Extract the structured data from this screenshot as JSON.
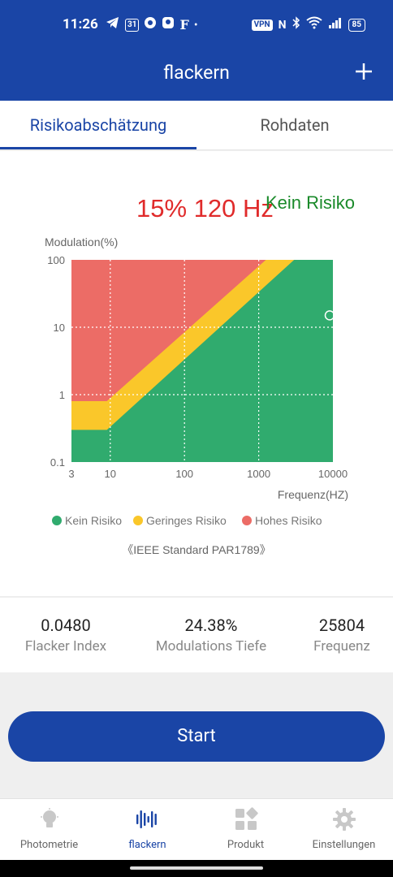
{
  "status_bar": {
    "time": "11:26",
    "calendar_day": "31",
    "f_icon": "F",
    "dot": "•",
    "vpn": "VPN",
    "nfc": "N",
    "battery": "85",
    "icons": [
      "telegram-icon",
      "calendar-icon",
      "chrome-icon",
      "app-icon",
      "bluetooth-icon",
      "wifi-icon",
      "signal-icon"
    ]
  },
  "app_bar": {
    "title": "flackern",
    "add_icon": "plus-icon"
  },
  "tabs": [
    {
      "label": "Risikoabschätzung",
      "active": true
    },
    {
      "label": "Rohdaten",
      "active": false
    }
  ],
  "chart_data": {
    "type": "area",
    "readout": {
      "percent_freq": "15% 120 Hz",
      "risk": "Kein Risiko"
    },
    "ylabel": "Modulation(%)",
    "xlabel": "Frequenz(HZ)",
    "x_scale": "log",
    "y_scale": "log",
    "x_ticks": [
      "3",
      "10",
      "100",
      "1000",
      "10000"
    ],
    "y_ticks": [
      "100",
      "10",
      "1",
      "0.1"
    ],
    "xlim": [
      3,
      10000
    ],
    "ylim": [
      0.1,
      100
    ],
    "grid": "dotted",
    "regions": [
      {
        "name": "Kein Risiko",
        "color": "#30ab6e",
        "boundary": [
          [
            3,
            0.3
          ],
          [
            9,
            0.3
          ],
          [
            3000,
            100
          ]
        ]
      },
      {
        "name": "Geringes Risiko",
        "color": "#fac72a",
        "boundary": [
          [
            3,
            0.8
          ],
          [
            9,
            0.8
          ],
          [
            1250,
            100
          ]
        ]
      },
      {
        "name": "Hohes Risiko",
        "color": "#ec6c66"
      }
    ],
    "marker": {
      "x_label": "above 10000",
      "y": 15,
      "color": "#ffffff"
    },
    "legend": [
      "Kein Risiko",
      "Geringes Risiko",
      "Hohes Risiko"
    ],
    "legend_colors": [
      "#30ab6e",
      "#fac72a",
      "#ec6c66"
    ],
    "legend_placement": "bottom",
    "source": "《IEEE Standard PAR1789》"
  },
  "stats": [
    {
      "value": "0.0480",
      "label": "Flacker Index"
    },
    {
      "value": "24.38%",
      "label": "Modulations Tiefe"
    },
    {
      "value": "25804",
      "label": "Frequenz"
    }
  ],
  "start_button": "Start",
  "bottom_nav": [
    {
      "label": "Photometrie",
      "icon": "lightbulb-icon",
      "active": false
    },
    {
      "label": "flackern",
      "icon": "waveform-icon",
      "active": true
    },
    {
      "label": "Produkt",
      "icon": "grid-icon",
      "active": false
    },
    {
      "label": "Einstellungen",
      "icon": "gear-icon",
      "active": false
    }
  ],
  "colors": {
    "primary": "#1a45a6",
    "high_risk_text": "#e02b2b",
    "no_risk_text": "#1a8a2a"
  }
}
